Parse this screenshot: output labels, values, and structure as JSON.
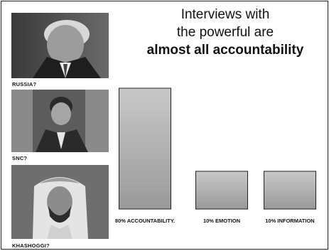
{
  "slide": {
    "title_line1": "Interviews with",
    "title_line2": "the powerful are",
    "title_line3": "almost all accountability"
  },
  "photos": [
    {
      "caption": "RUSSIA?"
    },
    {
      "caption": "SNC?"
    },
    {
      "caption": "KHASHOGGI?"
    }
  ],
  "chart_data": {
    "type": "bar",
    "title": "",
    "xlabel": "",
    "ylabel": "",
    "categories": [
      "80% ACCOUNTABILITY.",
      "10% EMOTION",
      "10% INFORMATION"
    ],
    "values": [
      80,
      10,
      10
    ],
    "ylim": [
      0,
      80
    ],
    "grid": false,
    "legend": "none",
    "bar_fill_top": "#c8c8c8",
    "bar_fill_bottom": "#9a9a9a",
    "bar_stroke": "#222222"
  }
}
